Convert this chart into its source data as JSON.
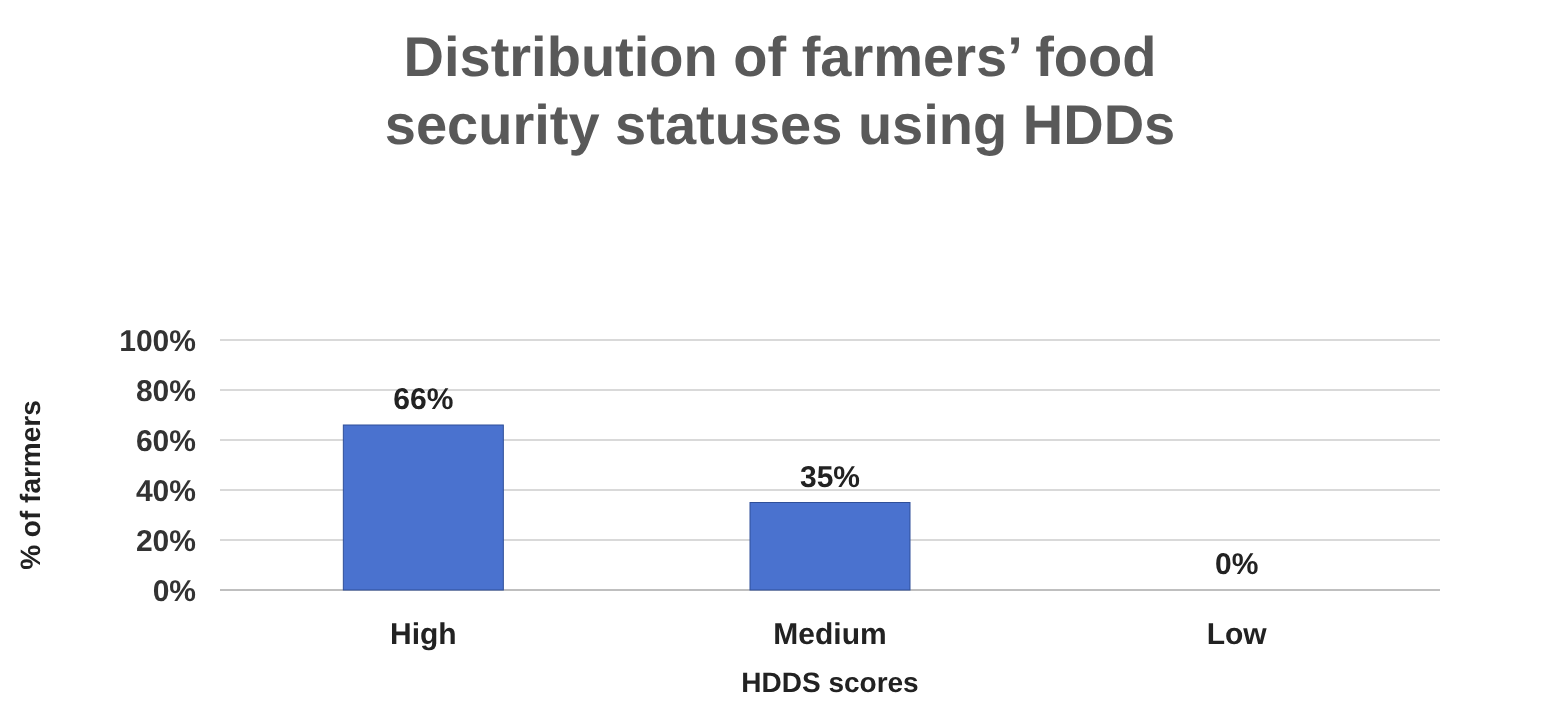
{
  "chart_data": {
    "type": "bar",
    "title": "Distribution of farmers’ food security statuses using HDDs",
    "xlabel": "HDDS scores",
    "ylabel": "% of farmers",
    "categories": [
      "High",
      "Medium",
      "Low"
    ],
    "values": [
      66,
      35,
      0
    ],
    "colors": [
      "#4a72cf",
      "#4a72cf",
      "#1c2a4c"
    ],
    "ylim": [
      0,
      100
    ],
    "yticks": [
      {
        "value": 0,
        "label": "0%"
      },
      {
        "value": 20,
        "label": "20%"
      },
      {
        "value": 40,
        "label": "40%"
      },
      {
        "value": 60,
        "label": "60%"
      },
      {
        "value": 80,
        "label": "80%"
      },
      {
        "value": 100,
        "label": "100%"
      }
    ],
    "value_labels": [
      "66%",
      "35%",
      "0%"
    ],
    "grid": "y"
  }
}
